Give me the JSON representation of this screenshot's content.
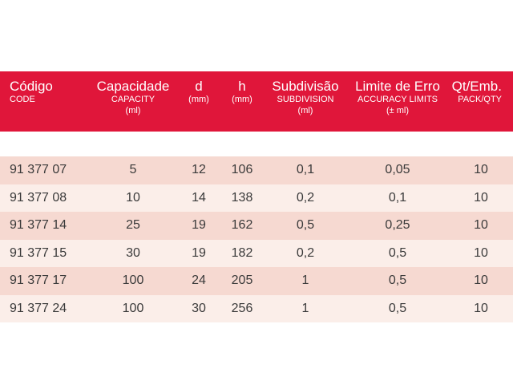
{
  "columns": [
    {
      "title": "Código",
      "sub": [
        "CODE"
      ]
    },
    {
      "title": "Capacidade",
      "sub": [
        "CAPACITY",
        "(ml)"
      ]
    },
    {
      "title": "d",
      "sub": [
        "(mm)"
      ]
    },
    {
      "title": "h",
      "sub": [
        "(mm)"
      ]
    },
    {
      "title": "Subdivisão",
      "sub": [
        "SUBDIVISION",
        "(ml)"
      ]
    },
    {
      "title": "Limite de Erro",
      "sub": [
        "ACCURACY LIMITS",
        "(± ml)"
      ]
    },
    {
      "title": "Qt/Emb.",
      "sub": [
        "PACK/QTY"
      ]
    }
  ],
  "rows": [
    [
      "91 377 07",
      "5",
      "12",
      "106",
      "0,1",
      "0,05",
      "10"
    ],
    [
      "91 377 08",
      "10",
      "14",
      "138",
      "0,2",
      "0,1",
      "10"
    ],
    [
      "91 377 14",
      "25",
      "19",
      "162",
      "0,5",
      "0,25",
      "10"
    ],
    [
      "91 377 15",
      "30",
      "19",
      "182",
      "0,2",
      "0,5",
      "10"
    ],
    [
      "91 377 17",
      "100",
      "24",
      "205",
      "1",
      "0,5",
      "10"
    ],
    [
      "91 377 24",
      "100",
      "30",
      "256",
      "1",
      "0,5",
      "10"
    ]
  ],
  "colors": {
    "header_bg": "#e0163a",
    "row_dark": "#f6d9d1",
    "row_light": "#fbeee9",
    "text": "#3a3a3a"
  }
}
